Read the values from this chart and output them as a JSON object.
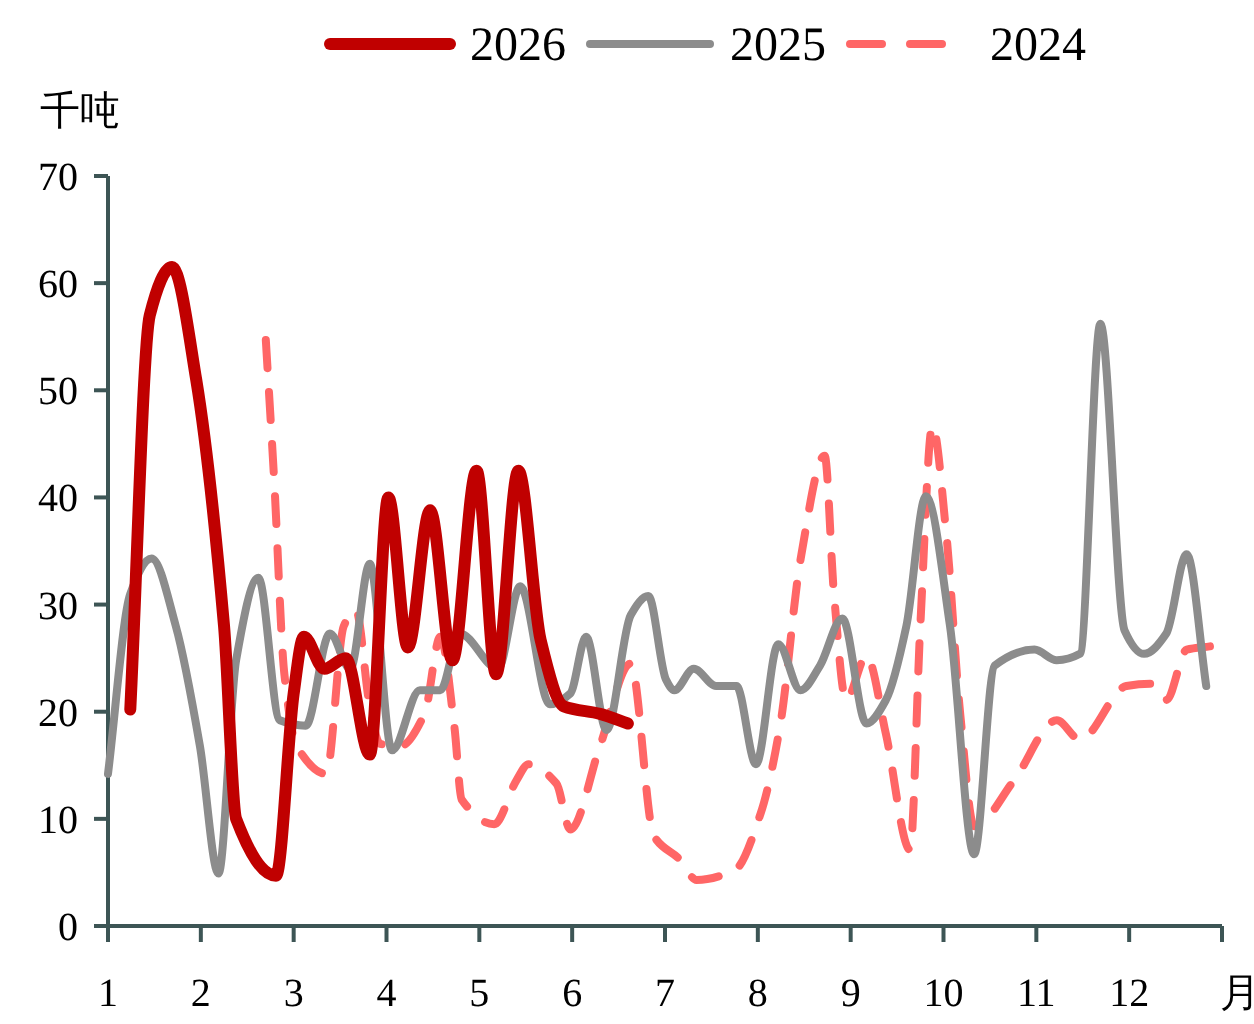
{
  "chart_data": {
    "type": "line",
    "ylabel": "千吨",
    "xlabel": "月",
    "legend": "top",
    "grid": false,
    "marker": "none",
    "xlim": [
      1,
      13
    ],
    "xticks": [
      1,
      2,
      3,
      4,
      5,
      6,
      7,
      8,
      9,
      10,
      11,
      12,
      {
        "value": 13,
        "label": null
      }
    ],
    "ylim": [
      0,
      70
    ],
    "yticks": [
      0,
      10,
      20,
      30,
      40,
      50,
      60,
      70
    ],
    "series": [
      {
        "name": "2026",
        "color": "#c00000",
        "line_style": "solid",
        "x": [
          1.24,
          1.45,
          1.69,
          1.95,
          2.25,
          2.38,
          2.81,
          3.0,
          3.11,
          3.33,
          3.56,
          3.82,
          4.02,
          4.23,
          4.47,
          4.71,
          4.97,
          5.18,
          5.42,
          5.66,
          5.91,
          6.3,
          6.6
        ],
        "values": [
          20.2,
          57,
          61.5,
          51,
          28,
          10,
          4.7,
          21.7,
          27,
          24,
          25,
          16,
          40,
          26,
          38.8,
          24.8,
          42.5,
          23.5,
          42.5,
          26.7,
          20.5,
          19.8,
          18.9
        ]
      },
      {
        "name": "2025",
        "color": "#8c8c8c",
        "line_style": "solid",
        "x": [
          1.0,
          1.24,
          1.47,
          1.73,
          1.99,
          2.19,
          2.38,
          2.62,
          2.85,
          3.13,
          3.39,
          3.61,
          3.82,
          4.06,
          4.36,
          4.58,
          4.79,
          5.2,
          5.44,
          5.76,
          5.98,
          6.15,
          6.37,
          6.63,
          6.82,
          7.01,
          7.1,
          7.31,
          7.55,
          7.77,
          7.98,
          8.22,
          8.46,
          8.67,
          8.91,
          9.17,
          9.38,
          9.6,
          9.81,
          10.07,
          10.33,
          10.55,
          10.98,
          11.22,
          11.47,
          11.69,
          11.95,
          12.16,
          12.4,
          12.62,
          12.83
        ],
        "values": [
          14.2,
          31,
          34.3,
          28,
          16.8,
          4.9,
          24.8,
          32.5,
          19.2,
          18.7,
          27.3,
          24,
          33.8,
          16.4,
          22,
          22,
          27.3,
          24,
          31.7,
          20.7,
          21.7,
          27,
          18.3,
          29,
          30.8,
          23,
          22,
          24,
          22.4,
          22.4,
          15.1,
          26.3,
          22,
          24.3,
          28.7,
          18.9,
          21.1,
          28,
          40.1,
          28,
          6.7,
          24.3,
          25.8,
          24.8,
          25.4,
          56.2,
          27.6,
          25.4,
          27.3,
          34.7,
          22.4
        ]
      },
      {
        "name": "2024",
        "color": "#ff6666",
        "line_style": "dashed",
        "x": [
          2.7,
          2.79,
          2.9,
          3.03,
          3.35,
          3.54,
          3.67,
          3.82,
          3.93,
          4.15,
          4.41,
          4.58,
          4.73,
          4.81,
          5.16,
          5.4,
          5.53,
          5.83,
          5.98,
          6.3,
          6.63,
          6.88,
          7.16,
          7.34,
          7.75,
          8.03,
          8.24,
          8.46,
          8.72,
          8.82,
          8.95,
          9.17,
          9.38,
          9.64,
          9.75,
          9.88,
          10.03,
          10.18,
          10.33,
          10.76,
          11.22,
          11.47,
          11.97,
          12.23,
          12.4,
          12.62,
          12.87
        ],
        "values": [
          54.7,
          41.6,
          23.5,
          16.8,
          14.2,
          28,
          29.5,
          20.5,
          17,
          16.8,
          19.8,
          27,
          18.7,
          11.8,
          9.5,
          13.6,
          15.1,
          13.3,
          9,
          16.8,
          24.5,
          8.4,
          6.2,
          4.3,
          5.2,
          10.5,
          18.7,
          34.2,
          43.9,
          31,
          21.1,
          25.2,
          17.9,
          7.1,
          28,
          46.7,
          36.6,
          19.8,
          9.3,
          13.6,
          19.2,
          17.4,
          22.4,
          22.6,
          21.1,
          25.8,
          26.1
        ]
      }
    ]
  }
}
